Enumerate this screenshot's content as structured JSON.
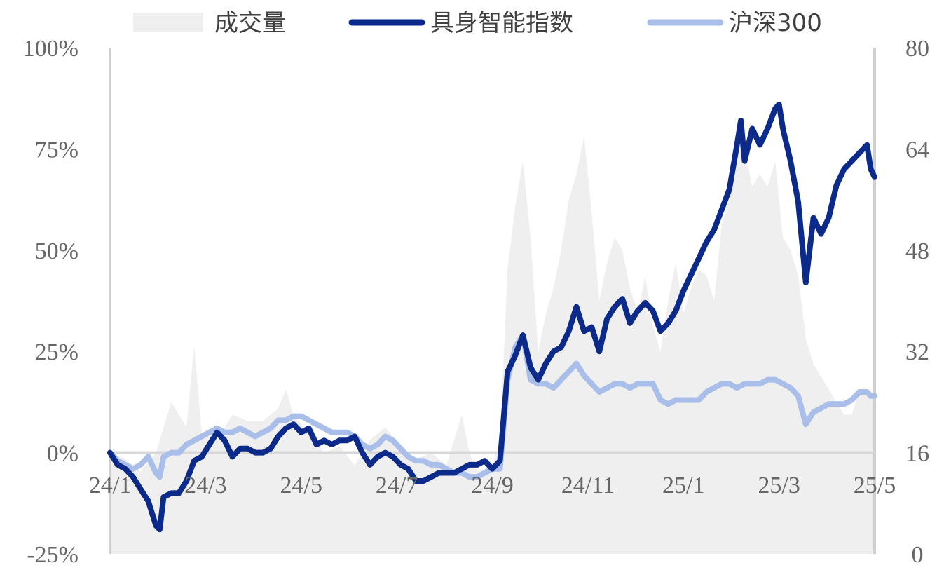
{
  "chart_data": {
    "type": "line",
    "title": "",
    "legend": {
      "placement": "top",
      "items": [
        {
          "label": "成交量",
          "kind": "area",
          "color": "#efefef"
        },
        {
          "label": "具身智能指数",
          "kind": "line",
          "color": "#0b2a8a"
        },
        {
          "label": "沪深300",
          "kind": "line",
          "color": "#a9bfea"
        }
      ]
    },
    "x_ticks": [
      "24/1",
      "24/3",
      "24/5",
      "24/7",
      "24/9",
      "24/11",
      "25/1",
      "25/3",
      "25/5"
    ],
    "y_left": {
      "ticks": [
        "-25%",
        "0%",
        "25%",
        "50%",
        "75%",
        "100%"
      ],
      "min": -25,
      "max": 100
    },
    "y_right": {
      "ticks": [
        "0",
        "16",
        "32",
        "48",
        "64",
        "80"
      ],
      "min": 0,
      "max": 80
    },
    "x_range": [
      0,
      100
    ],
    "series": [
      {
        "name": "具身智能指数",
        "axis": "left",
        "color": "#0b2a8a",
        "points": [
          [
            0,
            0
          ],
          [
            1,
            -3
          ],
          [
            2,
            -4
          ],
          [
            3,
            -6
          ],
          [
            4,
            -9
          ],
          [
            5,
            -12
          ],
          [
            6,
            -18
          ],
          [
            6.5,
            -19
          ],
          [
            7,
            -11
          ],
          [
            8,
            -10
          ],
          [
            9,
            -10
          ],
          [
            10,
            -7
          ],
          [
            11,
            -2
          ],
          [
            12,
            -1
          ],
          [
            13,
            2
          ],
          [
            14,
            5
          ],
          [
            15,
            3
          ],
          [
            16,
            -1
          ],
          [
            17,
            1
          ],
          [
            18,
            1
          ],
          [
            19,
            0
          ],
          [
            20,
            0
          ],
          [
            21,
            1
          ],
          [
            22,
            4
          ],
          [
            23,
            6
          ],
          [
            24,
            7
          ],
          [
            25,
            5
          ],
          [
            26,
            6
          ],
          [
            27,
            2
          ],
          [
            28,
            3
          ],
          [
            29,
            2
          ],
          [
            30,
            3
          ],
          [
            31,
            3
          ],
          [
            32,
            4
          ],
          [
            33,
            0
          ],
          [
            34,
            -3
          ],
          [
            35,
            -1
          ],
          [
            36,
            0
          ],
          [
            37,
            -1
          ],
          [
            38,
            -3
          ],
          [
            39,
            -4
          ],
          [
            40,
            -7
          ],
          [
            41,
            -7
          ],
          [
            42,
            -6
          ],
          [
            43,
            -5
          ],
          [
            44,
            -5
          ],
          [
            45,
            -5
          ],
          [
            46,
            -4
          ],
          [
            47,
            -3
          ],
          [
            48,
            -3
          ],
          [
            49,
            -2
          ],
          [
            50,
            -4
          ],
          [
            51,
            -2
          ],
          [
            52,
            20
          ],
          [
            53,
            24
          ],
          [
            54,
            29
          ],
          [
            55,
            21
          ],
          [
            56,
            18
          ],
          [
            57,
            22
          ],
          [
            58,
            25
          ],
          [
            59,
            26
          ],
          [
            60,
            30
          ],
          [
            61,
            36
          ],
          [
            62,
            30
          ],
          [
            63,
            31
          ],
          [
            64,
            25
          ],
          [
            65,
            33
          ],
          [
            66,
            36
          ],
          [
            67,
            38
          ],
          [
            68,
            32
          ],
          [
            69,
            35
          ],
          [
            70,
            37
          ],
          [
            71,
            35
          ],
          [
            72,
            30
          ],
          [
            73,
            32
          ],
          [
            74,
            35
          ],
          [
            75,
            40
          ],
          [
            76,
            44
          ],
          [
            77,
            48
          ],
          [
            78,
            52
          ],
          [
            79,
            55
          ],
          [
            80,
            60
          ],
          [
            81,
            65
          ],
          [
            82,
            76
          ],
          [
            82.5,
            82
          ],
          [
            83,
            72
          ],
          [
            84,
            80
          ],
          [
            85,
            76
          ],
          [
            86,
            80
          ],
          [
            87,
            85
          ],
          [
            87.5,
            86
          ],
          [
            88,
            80
          ],
          [
            89,
            72
          ],
          [
            90,
            62
          ],
          [
            91,
            42
          ],
          [
            92,
            58
          ],
          [
            93,
            54
          ],
          [
            94,
            58
          ],
          [
            95,
            66
          ],
          [
            96,
            70
          ],
          [
            97,
            72
          ],
          [
            98,
            74
          ],
          [
            99,
            76
          ],
          [
            99.5,
            70
          ],
          [
            100,
            68
          ]
        ]
      },
      {
        "name": "沪深300",
        "axis": "left",
        "color": "#a9bfea",
        "points": [
          [
            0,
            0
          ],
          [
            1,
            -2
          ],
          [
            2,
            -3
          ],
          [
            3,
            -4
          ],
          [
            4,
            -3
          ],
          [
            5,
            -1
          ],
          [
            6,
            -5
          ],
          [
            6.5,
            -6
          ],
          [
            7,
            -1
          ],
          [
            8,
            0
          ],
          [
            9,
            0
          ],
          [
            10,
            2
          ],
          [
            11,
            3
          ],
          [
            12,
            4
          ],
          [
            13,
            5
          ],
          [
            14,
            6
          ],
          [
            15,
            5
          ],
          [
            16,
            5
          ],
          [
            17,
            6
          ],
          [
            18,
            5
          ],
          [
            19,
            4
          ],
          [
            20,
            5
          ],
          [
            21,
            6
          ],
          [
            22,
            8
          ],
          [
            23,
            8
          ],
          [
            24,
            9
          ],
          [
            25,
            9
          ],
          [
            26,
            8
          ],
          [
            27,
            7
          ],
          [
            28,
            6
          ],
          [
            29,
            5
          ],
          [
            30,
            5
          ],
          [
            31,
            5
          ],
          [
            32,
            4
          ],
          [
            33,
            2
          ],
          [
            34,
            1
          ],
          [
            35,
            2
          ],
          [
            36,
            4
          ],
          [
            37,
            3
          ],
          [
            38,
            1
          ],
          [
            39,
            -1
          ],
          [
            40,
            -2
          ],
          [
            41,
            -2
          ],
          [
            42,
            -3
          ],
          [
            43,
            -3
          ],
          [
            44,
            -4
          ],
          [
            45,
            -5
          ],
          [
            46,
            -5
          ],
          [
            47,
            -6
          ],
          [
            48,
            -6
          ],
          [
            49,
            -5
          ],
          [
            50,
            -4
          ],
          [
            51,
            -4
          ],
          [
            52,
            18
          ],
          [
            53,
            26
          ],
          [
            54,
            29
          ],
          [
            55,
            18
          ],
          [
            56,
            17
          ],
          [
            57,
            17
          ],
          [
            58,
            16
          ],
          [
            59,
            18
          ],
          [
            60,
            20
          ],
          [
            61,
            22
          ],
          [
            62,
            19
          ],
          [
            63,
            17
          ],
          [
            64,
            15
          ],
          [
            65,
            16
          ],
          [
            66,
            17
          ],
          [
            67,
            17
          ],
          [
            68,
            16
          ],
          [
            69,
            17
          ],
          [
            70,
            17
          ],
          [
            71,
            17
          ],
          [
            72,
            13
          ],
          [
            73,
            12
          ],
          [
            74,
            13
          ],
          [
            75,
            13
          ],
          [
            76,
            13
          ],
          [
            77,
            13
          ],
          [
            78,
            15
          ],
          [
            79,
            16
          ],
          [
            80,
            17
          ],
          [
            81,
            17
          ],
          [
            82,
            16
          ],
          [
            83,
            17
          ],
          [
            84,
            17
          ],
          [
            85,
            17
          ],
          [
            86,
            18
          ],
          [
            87,
            18
          ],
          [
            88,
            17
          ],
          [
            89,
            16
          ],
          [
            90,
            14
          ],
          [
            91,
            7
          ],
          [
            92,
            10
          ],
          [
            93,
            11
          ],
          [
            94,
            12
          ],
          [
            95,
            12
          ],
          [
            96,
            12
          ],
          [
            97,
            13
          ],
          [
            98,
            15
          ],
          [
            99,
            15
          ],
          [
            99.5,
            14
          ],
          [
            100,
            14
          ]
        ]
      },
      {
        "name": "成交量",
        "axis": "right",
        "type": "area",
        "color": "#efefef",
        "points": [
          [
            0,
            16
          ],
          [
            2,
            15
          ],
          [
            4,
            13
          ],
          [
            6,
            16
          ],
          [
            8,
            24
          ],
          [
            10,
            20
          ],
          [
            11,
            33
          ],
          [
            12,
            19
          ],
          [
            14,
            18
          ],
          [
            16,
            22
          ],
          [
            18,
            21
          ],
          [
            20,
            21
          ],
          [
            22,
            23
          ],
          [
            23,
            26
          ],
          [
            24,
            22
          ],
          [
            26,
            19
          ],
          [
            28,
            16
          ],
          [
            30,
            17
          ],
          [
            32,
            14
          ],
          [
            34,
            18
          ],
          [
            36,
            20
          ],
          [
            38,
            17
          ],
          [
            40,
            15
          ],
          [
            42,
            16
          ],
          [
            44,
            14
          ],
          [
            46,
            22
          ],
          [
            47,
            16
          ],
          [
            48,
            13
          ],
          [
            50,
            14
          ],
          [
            51,
            18
          ],
          [
            52,
            45
          ],
          [
            53,
            55
          ],
          [
            54,
            62
          ],
          [
            55,
            50
          ],
          [
            56,
            32
          ],
          [
            57,
            38
          ],
          [
            58,
            42
          ],
          [
            59,
            48
          ],
          [
            60,
            56
          ],
          [
            61,
            60
          ],
          [
            62,
            66
          ],
          [
            63,
            54
          ],
          [
            64,
            40
          ],
          [
            65,
            46
          ],
          [
            66,
            50
          ],
          [
            67,
            48
          ],
          [
            68,
            42
          ],
          [
            69,
            38
          ],
          [
            70,
            44
          ],
          [
            71,
            36
          ],
          [
            72,
            32
          ],
          [
            73,
            40
          ],
          [
            74,
            46
          ],
          [
            75,
            38
          ],
          [
            76,
            42
          ],
          [
            77,
            45
          ],
          [
            78,
            44
          ],
          [
            79,
            40
          ],
          [
            80,
            52
          ],
          [
            81,
            56
          ],
          [
            82,
            66
          ],
          [
            83,
            64
          ],
          [
            84,
            58
          ],
          [
            85,
            60
          ],
          [
            86,
            58
          ],
          [
            87,
            62
          ],
          [
            88,
            50
          ],
          [
            89,
            48
          ],
          [
            90,
            44
          ],
          [
            91,
            34
          ],
          [
            92,
            30
          ],
          [
            93,
            28
          ],
          [
            94,
            26
          ],
          [
            95,
            24
          ],
          [
            96,
            22
          ],
          [
            97,
            22
          ],
          [
            98,
            26
          ],
          [
            99,
            26
          ],
          [
            100,
            24
          ]
        ]
      }
    ]
  }
}
